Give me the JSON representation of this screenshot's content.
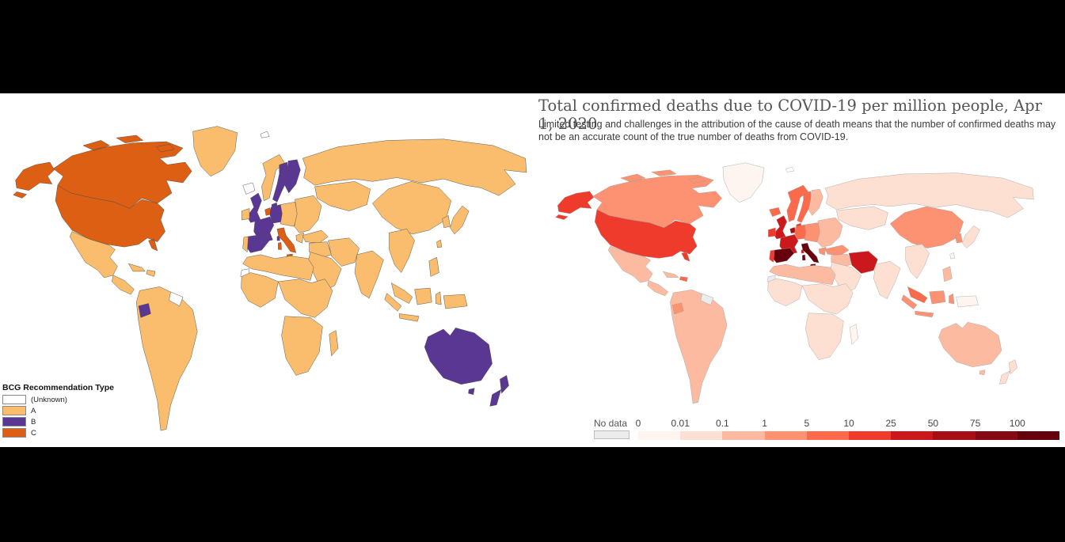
{
  "chart_data": [
    {
      "type": "choropleth_map",
      "title": "BCG Recommendation Type",
      "legend_position": "bottom-left",
      "legend_categories": [
        {
          "key": "U",
          "label": "(Unknown)",
          "color": "#ffffff"
        },
        {
          "key": "A",
          "label": "A",
          "color": "#F9BD6D"
        },
        {
          "key": "B",
          "label": "B",
          "color": "#5B3794"
        },
        {
          "key": "C",
          "label": "C",
          "color": "#DD5F13"
        }
      ],
      "region_categories": {
        "alaska": "C",
        "canada": "C",
        "usa": "C",
        "greenland": "A",
        "iceland": "U",
        "svalbard": "U",
        "mexico": "A",
        "central_america": "A",
        "cuba": "A",
        "hispaniola": "A",
        "south_america": "A",
        "ecuador": "B",
        "guyana": "U",
        "uk": "B",
        "ireland": "A",
        "norway": "A",
        "sweden": "B",
        "finland": "B",
        "denmark": "B",
        "netherlands": "C",
        "germany": "B",
        "central_europe": "A",
        "france": "B",
        "spain": "B",
        "portugal": "A",
        "italy": "C",
        "eastern_europe": "A",
        "greece": "A",
        "russia": "A",
        "central_asia": "A",
        "turkey": "A",
        "iraq_levant": "A",
        "iran": "A",
        "saudi": "A",
        "north_africa": "A",
        "western_sahara": "U",
        "west_africa": "A",
        "central_east_africa": "A",
        "southern_africa": "A",
        "madagascar": "A",
        "india": "A",
        "china": "A",
        "se_asia": "A",
        "philippines": "A",
        "malay": "A",
        "sumatra": "A",
        "borneo": "A",
        "java": "A",
        "sulawesi": "A",
        "new_guinea": "A",
        "japan": "A",
        "korea": "A",
        "taiwan": "A",
        "australia": "B",
        "tasmania": "B",
        "new_zealand": "B"
      }
    },
    {
      "type": "choropleth_map",
      "title": "Total confirmed deaths due to COVID-19 per million people, Apr 1, 2020",
      "subtitle": "Limited testing and challenges in the attribution of the cause of death means that the number of confirmed deaths may not be an accurate count of the true number of deaths from COVID-19.",
      "legend_bins": {
        "no_data_label": "No data",
        "no_data_color": "#ececec",
        "tick_labels": [
          "0",
          "0.01",
          "0.1",
          "1",
          "5",
          "10",
          "25",
          "50",
          "75",
          "100"
        ],
        "bin_colors": [
          "#fff5f0",
          "#fee0d2",
          "#fcbba1",
          "#fc9272",
          "#fb6a4a",
          "#ef3b2c",
          "#cb181d",
          "#a50f15",
          "#850812",
          "#67000d"
        ]
      },
      "region_bins": {
        "alaska": 5,
        "canada": 3,
        "usa": 5,
        "greenland": 0,
        "iceland": 4,
        "svalbard": "none",
        "mexico": 2,
        "central_america": 2,
        "cuba": 2,
        "hispaniola": 4,
        "south_america": 2,
        "ecuador": 3,
        "guyana": "nd",
        "uk": 6,
        "ireland": 5,
        "norway": 4,
        "sweden": 4,
        "finland": 2,
        "denmark": 5,
        "netherlands": 7,
        "germany": 4,
        "central_europe": 3,
        "france": 6,
        "spain": 9,
        "portugal": 5,
        "italy": 9,
        "eastern_europe": 2,
        "greece": 3,
        "russia": 1,
        "central_asia": 1,
        "turkey": 3,
        "iraq_levant": 2,
        "iran": 6,
        "saudi": 1,
        "north_africa": 2,
        "western_sahara": "nd",
        "west_africa": 1,
        "central_east_africa": 1,
        "southern_africa": 1,
        "madagascar": 0,
        "india": 1,
        "china": 3,
        "se_asia": 1,
        "philippines": 2,
        "malay": 4,
        "sumatra": 3,
        "borneo": 3,
        "java": 3,
        "sulawesi": 3,
        "new_guinea": 0,
        "japan": 1,
        "korea": 3,
        "taiwan": 0,
        "australia": 2,
        "tasmania": 2,
        "new_zealand": 1
      }
    }
  ]
}
